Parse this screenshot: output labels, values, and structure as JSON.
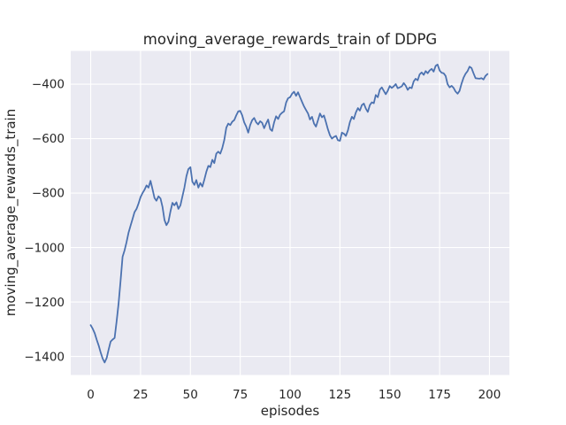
{
  "chart_data": {
    "type": "line",
    "title": "moving_average_rewards_train of DDPG",
    "xlabel": "episodes",
    "ylabel": "moving_average_rewards_train",
    "legend": null,
    "grid": true,
    "style": "seaborn-darkgrid",
    "plot_bg_color": "#eaeaf2",
    "grid_color": "#ffffff",
    "line_color": "#4c72b0",
    "text_color": "#262626",
    "xlim": [
      -10,
      210
    ],
    "ylim": [
      -1468,
      -278
    ],
    "x_axis": {
      "label": "episodes",
      "ticks": [
        {
          "value": 0,
          "label": "0"
        },
        {
          "value": 25,
          "label": "25"
        },
        {
          "value": 50,
          "label": "50"
        },
        {
          "value": 75,
          "label": "75"
        },
        {
          "value": 100,
          "label": "100"
        },
        {
          "value": 125,
          "label": "125"
        },
        {
          "value": 150,
          "label": "150"
        },
        {
          "value": 175,
          "label": "175"
        },
        {
          "value": 200,
          "label": "200"
        }
      ]
    },
    "y_axis": {
      "label": "moving_average_rewards_train",
      "ticks": [
        {
          "value": -400,
          "label": "−400"
        },
        {
          "value": -600,
          "label": "−600"
        },
        {
          "value": -800,
          "label": "−800"
        },
        {
          "value": -1000,
          "label": "−1000"
        },
        {
          "value": -1200,
          "label": "−1200"
        },
        {
          "value": -1400,
          "label": "−1400"
        }
      ]
    },
    "series": [
      {
        "name": "moving_average_rewards_train",
        "x_start": 0,
        "x_step": 1,
        "values": [
          -1285,
          -1298,
          -1315,
          -1338,
          -1360,
          -1385,
          -1408,
          -1422,
          -1406,
          -1375,
          -1345,
          -1338,
          -1332,
          -1270,
          -1205,
          -1120,
          -1034,
          -1010,
          -980,
          -945,
          -920,
          -895,
          -870,
          -858,
          -838,
          -815,
          -800,
          -788,
          -772,
          -780,
          -755,
          -785,
          -818,
          -828,
          -812,
          -820,
          -850,
          -899,
          -918,
          -905,
          -868,
          -836,
          -845,
          -834,
          -858,
          -845,
          -812,
          -780,
          -738,
          -712,
          -705,
          -758,
          -770,
          -752,
          -780,
          -763,
          -776,
          -750,
          -722,
          -700,
          -705,
          -678,
          -690,
          -655,
          -648,
          -655,
          -635,
          -605,
          -560,
          -545,
          -550,
          -538,
          -532,
          -515,
          -500,
          -498,
          -515,
          -540,
          -556,
          -578,
          -550,
          -532,
          -524,
          -540,
          -548,
          -536,
          -542,
          -562,
          -545,
          -530,
          -565,
          -572,
          -540,
          -518,
          -528,
          -512,
          -505,
          -500,
          -468,
          -452,
          -448,
          -435,
          -428,
          -443,
          -430,
          -448,
          -465,
          -482,
          -495,
          -508,
          -530,
          -520,
          -545,
          -556,
          -532,
          -508,
          -522,
          -515,
          -540,
          -566,
          -588,
          -600,
          -594,
          -590,
          -606,
          -608,
          -578,
          -582,
          -590,
          -570,
          -540,
          -520,
          -528,
          -504,
          -488,
          -497,
          -477,
          -471,
          -490,
          -502,
          -477,
          -467,
          -470,
          -440,
          -448,
          -420,
          -412,
          -425,
          -437,
          -424,
          -407,
          -414,
          -408,
          -400,
          -415,
          -412,
          -408,
          -396,
          -406,
          -421,
          -412,
          -415,
          -390,
          -380,
          -386,
          -364,
          -357,
          -366,
          -352,
          -360,
          -350,
          -344,
          -354,
          -333,
          -328,
          -350,
          -358,
          -360,
          -370,
          -400,
          -412,
          -406,
          -414,
          -427,
          -435,
          -425,
          -398,
          -377,
          -362,
          -352,
          -336,
          -341,
          -360,
          -378,
          -379,
          -380,
          -378,
          -383,
          -370,
          -363
        ]
      }
    ]
  }
}
